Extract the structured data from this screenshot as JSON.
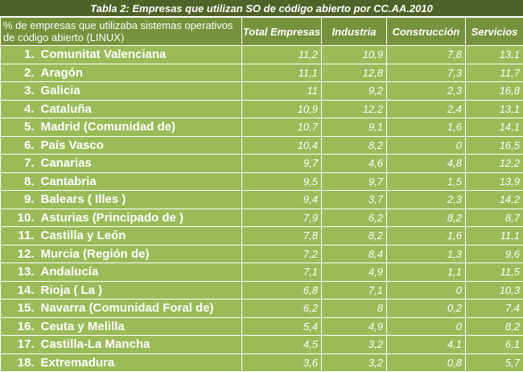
{
  "title": "Tabla 2: Empresas que utilizan SO de código abierto por CC.AA.2010",
  "header": {
    "description": "% de empresas que utilizaba sistemas operativos de código abierto (LINUX)",
    "col_total": "Total Empresas",
    "col_industria": "Industria",
    "col_construccion": "Construcción",
    "col_servicios": "Servicios"
  },
  "rows": [
    {
      "rank": "1.",
      "region": "Comunitat Valenciana",
      "total": "11,2",
      "industria": "10,9",
      "construccion": "7,8",
      "servicios": "13,1"
    },
    {
      "rank": "2.",
      "region": "Aragón",
      "total": "11,1",
      "industria": "12,8",
      "construccion": "7,3",
      "servicios": "11,7"
    },
    {
      "rank": "3.",
      "region": "Galicia",
      "total": "11",
      "industria": "9,2",
      "construccion": "2,3",
      "servicios": "16,8"
    },
    {
      "rank": "4.",
      "region": "Cataluña",
      "total": "10,9",
      "industria": "12,2",
      "construccion": "2,4",
      "servicios": "13,1"
    },
    {
      "rank": "5.",
      "region": "Madrid (Comunidad de)",
      "total": "10,7",
      "industria": "9,1",
      "construccion": "1,6",
      "servicios": "14,1"
    },
    {
      "rank": "6.",
      "region": "País Vasco",
      "total": "10,4",
      "industria": "8,2",
      "construccion": "0",
      "servicios": "16,5"
    },
    {
      "rank": "7.",
      "region": "Canarias",
      "total": "9,7",
      "industria": "4,6",
      "construccion": "4,8",
      "servicios": "12,2"
    },
    {
      "rank": "8.",
      "region": "Cantabria",
      "total": "9,5",
      "industria": "9,7",
      "construccion": "1,5",
      "servicios": "13,9"
    },
    {
      "rank": "9.",
      "region": "Balears ( Illes )",
      "total": "9,4",
      "industria": "3,7",
      "construccion": "2,3",
      "servicios": "14,2"
    },
    {
      "rank": "10.",
      "region": "Asturias (Principado de )",
      "total": "7,9",
      "industria": "6,2",
      "construccion": "8,2",
      "servicios": "8,7"
    },
    {
      "rank": "11.",
      "region": "Castilla y León",
      "total": "7,8",
      "industria": "8,2",
      "construccion": "1,6",
      "servicios": "11,1"
    },
    {
      "rank": "12.",
      "region": "Murcia (Región de)",
      "total": "7,2",
      "industria": "8,4",
      "construccion": "1,3",
      "servicios": "9,6"
    },
    {
      "rank": "13.",
      "region": "Andalucía",
      "total": "7,1",
      "industria": "4,9",
      "construccion": "1,1",
      "servicios": "11,5"
    },
    {
      "rank": "14.",
      "region": "Rioja ( La )",
      "total": "6,8",
      "industria": "7,1",
      "construccion": "0",
      "servicios": "10,3"
    },
    {
      "rank": "15.",
      "region": "Navarra (Comunidad Foral de)",
      "total": "6,2",
      "industria": "8",
      "construccion": "0,2",
      "servicios": "7,4"
    },
    {
      "rank": "16.",
      "region": "Ceuta y Melilla",
      "total": "5,4",
      "industria": "4,9",
      "construccion": "0",
      "servicios": "8,2"
    },
    {
      "rank": "17.",
      "region": "Castilla-La Mancha",
      "total": "4,5",
      "industria": "3,2",
      "construccion": "4,1",
      "servicios": "6,1"
    },
    {
      "rank": "18.",
      "region": "Extremadura",
      "total": "3,6",
      "industria": "3,2",
      "construccion": "0,8",
      "servicios": "5,7"
    }
  ]
}
